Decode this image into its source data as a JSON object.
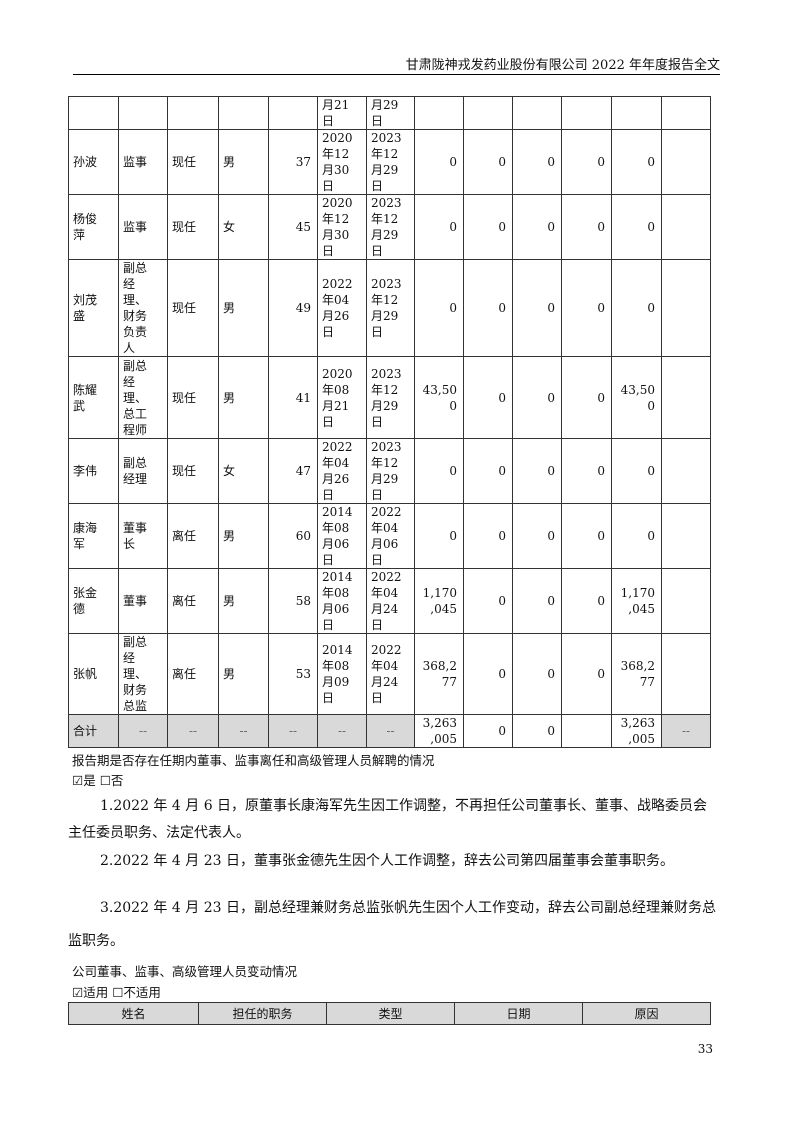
{
  "header": {
    "title": "甘肃陇神戎发药业股份有限公司 2022 年年度报告全文"
  },
  "table": {
    "rows": [
      [
        "",
        "",
        "",
        "",
        "",
        "月21\n日",
        "月29\n日",
        "",
        "",
        "",
        "",
        "",
        ""
      ],
      [
        "孙波",
        "监事",
        "现任",
        "男",
        "37",
        "2020\n年12\n月30\n日",
        "2023\n年12\n月29\n日",
        "0",
        "0",
        "0",
        "0",
        "0",
        ""
      ],
      [
        "杨俊\n萍",
        "监事",
        "现任",
        "女",
        "45",
        "2020\n年12\n月30\n日",
        "2023\n年12\n月29\n日",
        "0",
        "0",
        "0",
        "0",
        "0",
        ""
      ],
      [
        "刘茂\n盛",
        "副总\n经\n理、\n财务\n负责\n人",
        "现任",
        "男",
        "49",
        "2022\n年04\n月26\n日",
        "2023\n年12\n月29\n日",
        "0",
        "0",
        "0",
        "0",
        "0",
        ""
      ],
      [
        "陈耀\n武",
        "副总\n经\n理、\n总工\n程师",
        "现任",
        "男",
        "41",
        "2020\n年08\n月21\n日",
        "2023\n年12\n月29\n日",
        "43,50\n0",
        "0",
        "0",
        "0",
        "43,50\n0",
        ""
      ],
      [
        "李伟",
        "副总\n经理",
        "现任",
        "女",
        "47",
        "2022\n年04\n月26\n日",
        "2023\n年12\n月29\n日",
        "0",
        "0",
        "0",
        "0",
        "0",
        ""
      ],
      [
        "康海\n军",
        "董事\n长",
        "离任",
        "男",
        "60",
        "2014\n年08\n月06\n日",
        "2022\n年04\n月06\n日",
        "0",
        "0",
        "0",
        "0",
        "0",
        ""
      ],
      [
        "张金\n德",
        "董事",
        "离任",
        "男",
        "58",
        "2014\n年08\n月06\n日",
        "2022\n年04\n月24\n日",
        "1,170\n,045",
        "0",
        "0",
        "0",
        "1,170\n,045",
        ""
      ],
      [
        "张帆",
        "副总\n经\n理、\n财务\n总监",
        "离任",
        "男",
        "53",
        "2014\n年08\n月09\n日",
        "2022\n年04\n月24\n日",
        "368,2\n77",
        "0",
        "0",
        "0",
        "368,2\n77",
        ""
      ]
    ],
    "total": [
      "合计",
      "--",
      "--",
      "--",
      "--",
      "--",
      "--",
      "3,263\n,005",
      "0",
      "0",
      "",
      "3,263\n,005",
      "--"
    ]
  },
  "question": "报告期是否存在任期内董事、监事离任和高级管理人员解聘的情况",
  "options1": {
    "yes": "☑是",
    "no": "☐否"
  },
  "paragraphs": [
    "1.2022 年 4 月 6 日，原董事长康海军先生因工作调整，不再担任公司董事长、董事、战略委员会主任委员职务、法定代表人。",
    "2.2022 年 4 月 23 日，董事张金德先生因个人工作调整，辞去公司第四届董事会董事职务。",
    "3.2022 年 4 月 23 日，副总经理兼财务总监张帆先生因个人工作变动，辞去公司副总经理兼财务总监职务。"
  ],
  "section2": "公司董事、监事、高级管理人员变动情况",
  "options2": {
    "yes": "☑适用",
    "no": "☐不适用"
  },
  "table2": {
    "headers": [
      "姓名",
      "担任的职务",
      "类型",
      "日期",
      "原因"
    ]
  },
  "page_number": "33"
}
